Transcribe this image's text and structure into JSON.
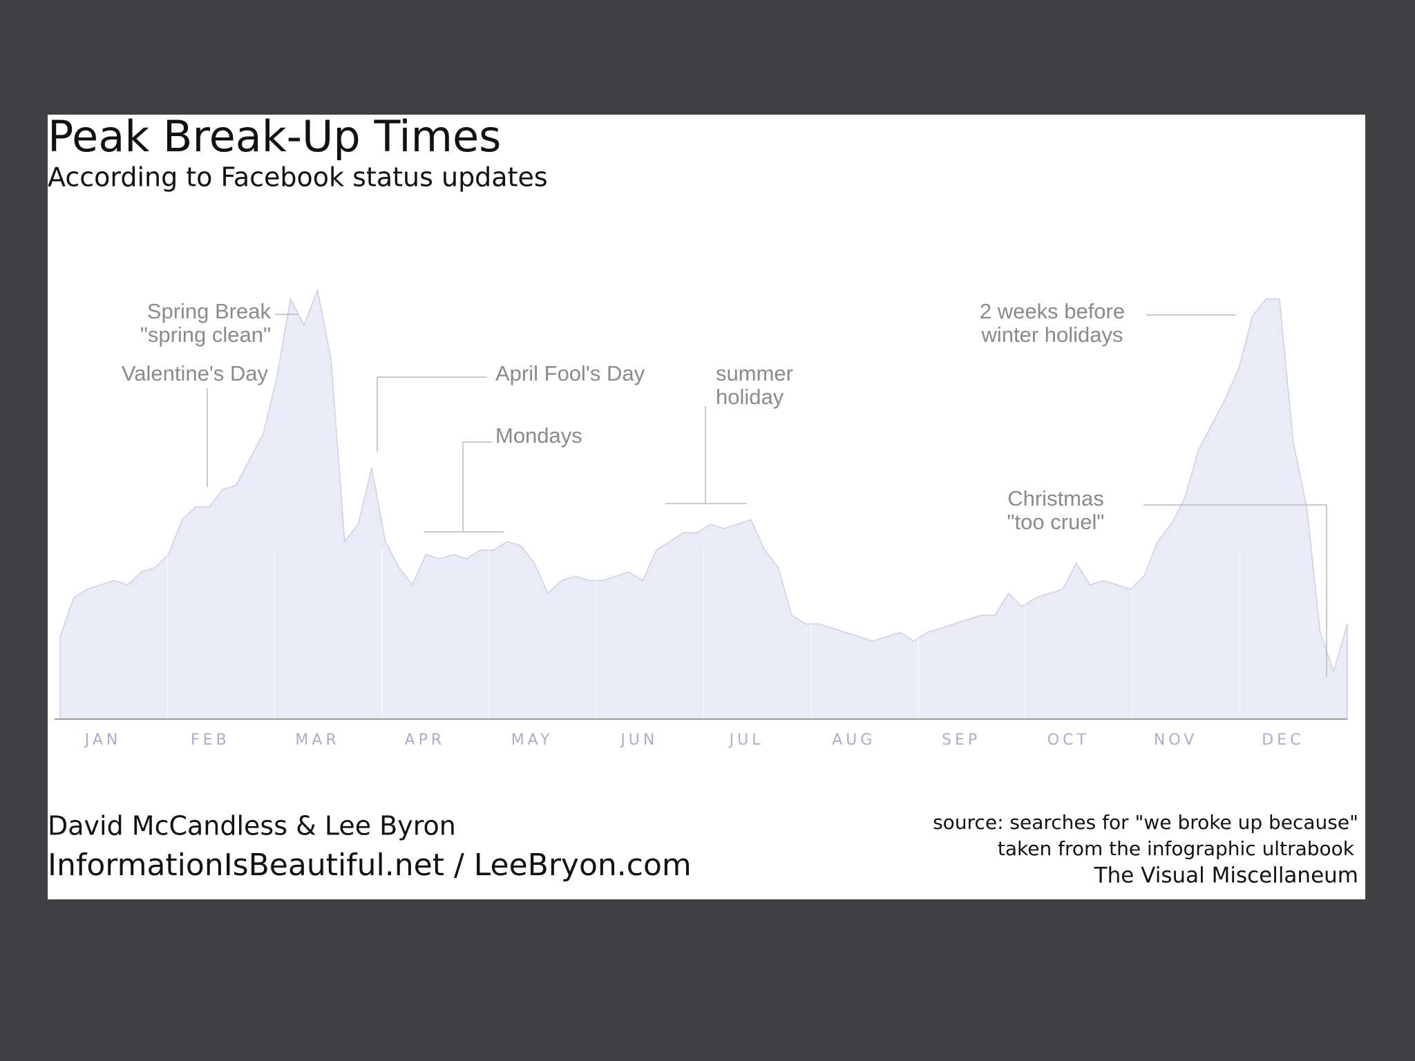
{
  "chart_data": {
    "type": "area",
    "title": "Peak Break-Up Times",
    "subtitle": "According to Facebook status updates",
    "months": [
      "JAN",
      "FEB",
      "MAR",
      "APR",
      "MAY",
      "JUN",
      "JUL",
      "AUG",
      "SEP",
      "OCT",
      "NOV",
      "DEC"
    ],
    "values": [
      19,
      28,
      30,
      31,
      32,
      31,
      34,
      35,
      38,
      46,
      49,
      49,
      53,
      54,
      60,
      66,
      79,
      97,
      91,
      99,
      83,
      41,
      45,
      58,
      41,
      35,
      31,
      38,
      37,
      38,
      37,
      39,
      39,
      41,
      40,
      36,
      29,
      32,
      33,
      32,
      32,
      33,
      34,
      32,
      39,
      41,
      43,
      43,
      45,
      44,
      45,
      46,
      39,
      35,
      24,
      22,
      22,
      21,
      20,
      19,
      18,
      19,
      20,
      18,
      20,
      21,
      22,
      23,
      24,
      24,
      29,
      26,
      28,
      29,
      30,
      36,
      31,
      32,
      31,
      30,
      33,
      41,
      45,
      51,
      62,
      68,
      74,
      81,
      93,
      97,
      97,
      64,
      49,
      20,
      11,
      22
    ],
    "ylim": [
      0,
      100
    ],
    "color": "#e9ebf7",
    "annotations": [
      {
        "lines": [
          "Spring Break",
          "\"spring clean\""
        ]
      },
      {
        "lines": [
          "Valentine's Day"
        ]
      },
      {
        "lines": [
          "April Fool's Day"
        ]
      },
      {
        "lines": [
          "Mondays"
        ]
      },
      {
        "lines": [
          "summer",
          "holiday"
        ]
      },
      {
        "lines": [
          "2 weeks before",
          "winter holidays"
        ]
      },
      {
        "lines": [
          "Christmas",
          "\"too cruel\""
        ]
      }
    ],
    "credits": [
      "David McCandless & Lee Byron",
      "InformationIsBeautiful.net / LeeBryon.com"
    ],
    "source": [
      "source: searches for \"we broke up because\"",
      "taken from the infographic ultrabook",
      "The Visual Miscellaneum"
    ]
  }
}
